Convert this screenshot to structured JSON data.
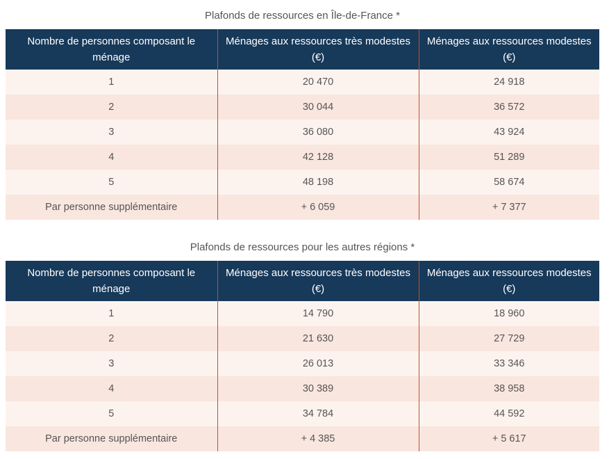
{
  "tables": [
    {
      "caption": "Plafonds de ressources en Île-de-France *",
      "headers": [
        "Nombre de personnes composant le ménage",
        "Ménages aux ressources très modestes (€)",
        "Ménages aux ressources modestes (€)"
      ],
      "rows": [
        [
          "1",
          "20 470",
          "24 918"
        ],
        [
          "2",
          "30 044",
          "36 572"
        ],
        [
          "3",
          "36 080",
          "43 924"
        ],
        [
          "4",
          "42 128",
          "51 289"
        ],
        [
          "5",
          "48 198",
          "58 674"
        ],
        [
          "Par personne supplémentaire",
          "+ 6 059",
          "+ 7 377"
        ]
      ]
    },
    {
      "caption": "Plafonds de ressources pour les autres régions *",
      "headers": [
        "Nombre de personnes composant le ménage",
        "Ménages aux ressources très modestes (€)",
        "Ménages aux ressources modestes (€)"
      ],
      "rows": [
        [
          "1",
          "14 790",
          "18 960"
        ],
        [
          "2",
          "21 630",
          "27 729"
        ],
        [
          "3",
          "26 013",
          "33 346"
        ],
        [
          "4",
          "30 389",
          "38 958"
        ],
        [
          "5",
          "34 784",
          "44 592"
        ],
        [
          "Par personne supplémentaire",
          "+ 4 385",
          "+ 5 617"
        ]
      ]
    }
  ],
  "colors": {
    "header_background": "#17395a",
    "row_light": "#fdf3ee",
    "row_dark": "#f9e6df",
    "column_divider": "#b9532f"
  }
}
